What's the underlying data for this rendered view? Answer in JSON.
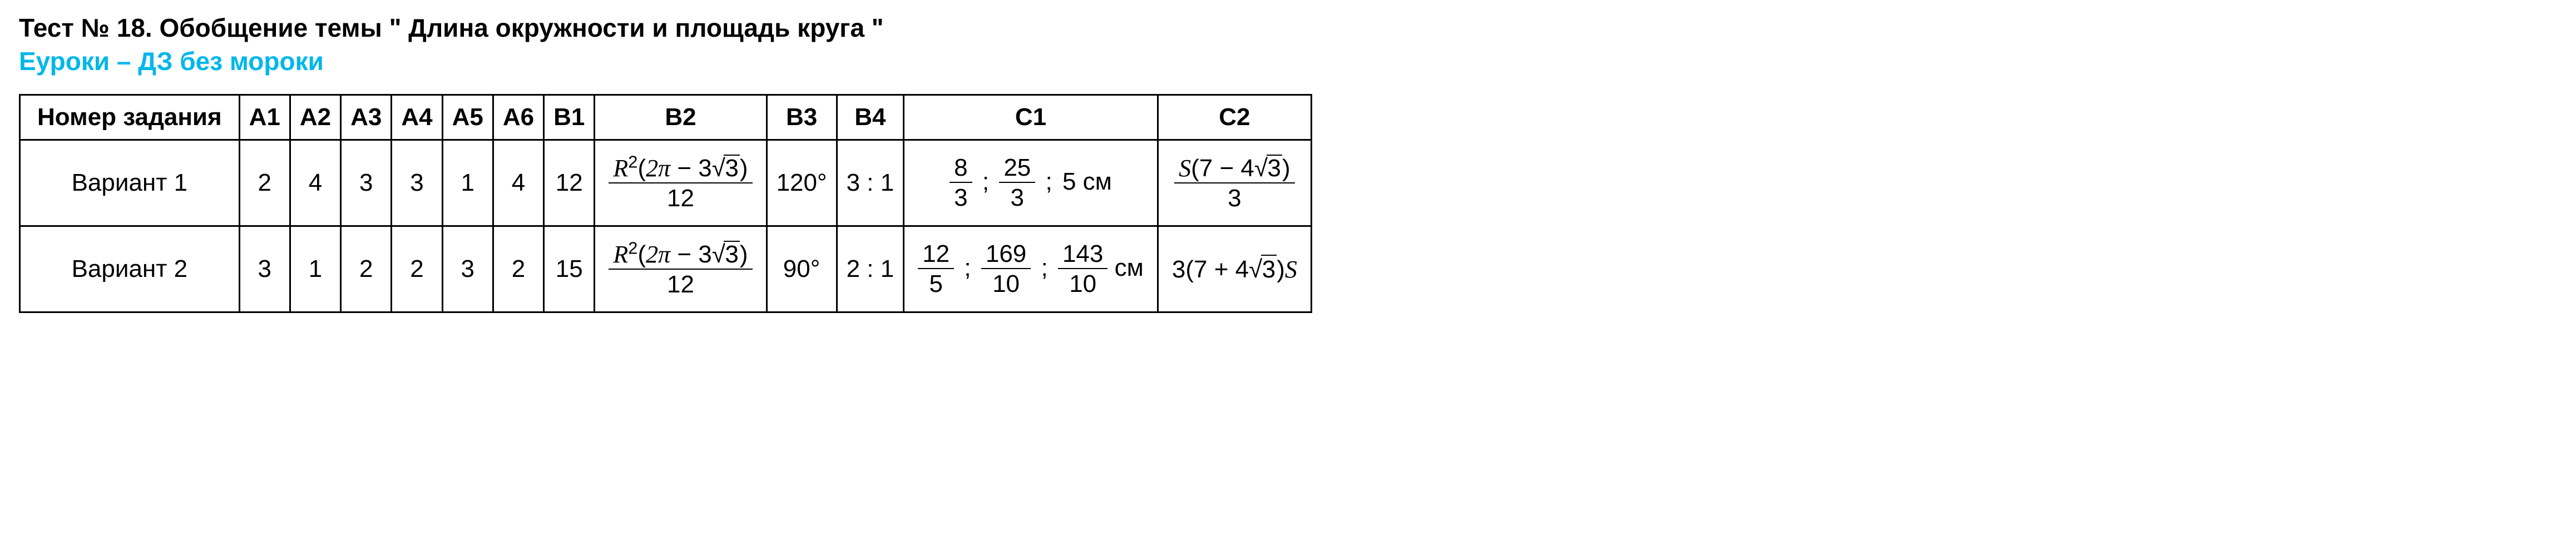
{
  "title": "Тест № 18. Обобщение темы \" Длина окружности и площадь круга \"",
  "subtitle": "Еуроки – ДЗ без мороки",
  "columns": [
    "Номер задания",
    "А1",
    "А2",
    "А3",
    "А4",
    "А5",
    "А6",
    "В1",
    "В2",
    "В3",
    "В4",
    "С1",
    "С2"
  ],
  "rows": [
    {
      "label": "Вариант 1",
      "A1": "2",
      "A2": "4",
      "A3": "3",
      "A4": "3",
      "A5": "1",
      "A6": "4",
      "B1": "12",
      "B2": {
        "R_sq": "R",
        "sup": "2",
        "lpar": "(",
        "two_pi": "2π",
        "minus": " − 3",
        "root": "3",
        "rpar": ")",
        "den": "12"
      },
      "B3": "120°",
      "B4": "3 : 1",
      "C1": {
        "f1": {
          "num": "8",
          "den": "3"
        },
        "sep1": " ; ",
        "f2": {
          "num": "25",
          "den": "3"
        },
        "sep2": " ; ",
        "tail": "5 см"
      },
      "C2": {
        "S": "S",
        "lpar": "(",
        "seven": "7 − 4",
        "root": "3",
        "rpar": ")",
        "den": "3"
      }
    },
    {
      "label": "Вариант 2",
      "A1": "3",
      "A2": "1",
      "A3": "2",
      "A4": "2",
      "A5": "3",
      "A6": "2",
      "B1": "15",
      "B2": {
        "R_sq": "R",
        "sup": "2",
        "lpar": "(",
        "two_pi": "2π",
        "minus": " − 3",
        "root": "3",
        "rpar": ")",
        "den": "12"
      },
      "B3": "90°",
      "B4": "2 : 1",
      "C1": {
        "f1": {
          "num": "12",
          "den": "5"
        },
        "sep1": " ; ",
        "f2": {
          "num": "169",
          "den": "10"
        },
        "sep2": " ; ",
        "f3": {
          "num": "143",
          "den": "10"
        },
        "tail": " см"
      },
      "C2": {
        "three": "3",
        "lpar": "(",
        "seven": "7 + 4",
        "root": "3",
        "rpar": ")",
        "S": "S"
      }
    }
  ]
}
